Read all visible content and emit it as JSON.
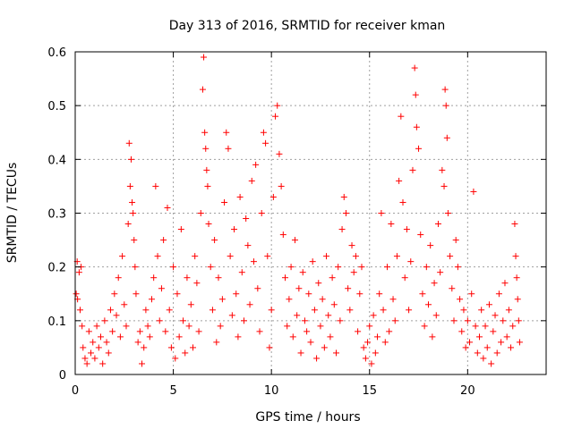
{
  "chart_data": {
    "type": "scatter",
    "title": "Day 313 of 2016, SRMTID for receiver kman",
    "xlabel": "GPS time / hours",
    "ylabel": "SRMTID / TECUs",
    "xlim": [
      0,
      24
    ],
    "ylim": [
      0,
      0.6
    ],
    "x_ticks": [
      0,
      5,
      10,
      15,
      20
    ],
    "y_ticks": [
      0,
      0.1,
      0.2,
      0.3,
      0.4,
      0.5,
      0.6
    ],
    "x_tick_labels": [
      "0",
      "5",
      "10",
      "15",
      "20"
    ],
    "y_tick_labels": [
      "0",
      "0.1",
      "0.2",
      "0.3",
      "0.4",
      "0.5",
      "0.6"
    ],
    "grid": true,
    "marker": "+",
    "color": "#ff0000",
    "series": [
      {
        "name": "SRMTID",
        "points": [
          [
            0.05,
            0.15
          ],
          [
            0.1,
            0.21
          ],
          [
            0.12,
            0.14
          ],
          [
            0.2,
            0.19
          ],
          [
            0.25,
            0.12
          ],
          [
            0.3,
            0.2
          ],
          [
            0.35,
            0.09
          ],
          [
            0.4,
            0.05
          ],
          [
            0.5,
            0.03
          ],
          [
            0.6,
            0.02
          ],
          [
            0.7,
            0.08
          ],
          [
            0.8,
            0.04
          ],
          [
            0.9,
            0.06
          ],
          [
            1.0,
            0.03
          ],
          [
            1.1,
            0.09
          ],
          [
            1.2,
            0.05
          ],
          [
            1.3,
            0.07
          ],
          [
            1.4,
            0.02
          ],
          [
            1.5,
            0.1
          ],
          [
            1.6,
            0.06
          ],
          [
            1.7,
            0.04
          ],
          [
            1.8,
            0.12
          ],
          [
            1.9,
            0.08
          ],
          [
            2.0,
            0.15
          ],
          [
            2.1,
            0.11
          ],
          [
            2.2,
            0.18
          ],
          [
            2.3,
            0.07
          ],
          [
            2.4,
            0.22
          ],
          [
            2.5,
            0.13
          ],
          [
            2.6,
            0.09
          ],
          [
            2.7,
            0.28
          ],
          [
            2.75,
            0.43
          ],
          [
            2.8,
            0.35
          ],
          [
            2.85,
            0.4
          ],
          [
            2.9,
            0.32
          ],
          [
            2.95,
            0.3
          ],
          [
            3.0,
            0.25
          ],
          [
            3.05,
            0.2
          ],
          [
            3.1,
            0.15
          ],
          [
            3.2,
            0.06
          ],
          [
            3.3,
            0.08
          ],
          [
            3.4,
            0.02
          ],
          [
            3.5,
            0.05
          ],
          [
            3.6,
            0.12
          ],
          [
            3.7,
            0.09
          ],
          [
            3.8,
            0.07
          ],
          [
            3.9,
            0.14
          ],
          [
            4.0,
            0.18
          ],
          [
            4.1,
            0.35
          ],
          [
            4.2,
            0.22
          ],
          [
            4.3,
            0.1
          ],
          [
            4.4,
            0.16
          ],
          [
            4.5,
            0.25
          ],
          [
            4.6,
            0.08
          ],
          [
            4.7,
            0.31
          ],
          [
            4.8,
            0.12
          ],
          [
            4.9,
            0.05
          ],
          [
            5.0,
            0.2
          ],
          [
            5.1,
            0.03
          ],
          [
            5.2,
            0.15
          ],
          [
            5.3,
            0.07
          ],
          [
            5.4,
            0.27
          ],
          [
            5.5,
            0.1
          ],
          [
            5.6,
            0.04
          ],
          [
            5.7,
            0.18
          ],
          [
            5.8,
            0.09
          ],
          [
            5.9,
            0.13
          ],
          [
            6.0,
            0.05
          ],
          [
            6.1,
            0.22
          ],
          [
            6.2,
            0.17
          ],
          [
            6.3,
            0.08
          ],
          [
            6.4,
            0.3
          ],
          [
            6.5,
            0.53
          ],
          [
            6.55,
            0.59
          ],
          [
            6.6,
            0.45
          ],
          [
            6.65,
            0.42
          ],
          [
            6.7,
            0.38
          ],
          [
            6.75,
            0.35
          ],
          [
            6.8,
            0.28
          ],
          [
            6.9,
            0.2
          ],
          [
            7.0,
            0.12
          ],
          [
            7.1,
            0.25
          ],
          [
            7.2,
            0.06
          ],
          [
            7.3,
            0.18
          ],
          [
            7.4,
            0.09
          ],
          [
            7.5,
            0.14
          ],
          [
            7.6,
            0.32
          ],
          [
            7.7,
            0.45
          ],
          [
            7.8,
            0.42
          ],
          [
            7.9,
            0.22
          ],
          [
            8.0,
            0.11
          ],
          [
            8.1,
            0.27
          ],
          [
            8.2,
            0.15
          ],
          [
            8.3,
            0.07
          ],
          [
            8.4,
            0.33
          ],
          [
            8.5,
            0.19
          ],
          [
            8.6,
            0.1
          ],
          [
            8.7,
            0.29
          ],
          [
            8.8,
            0.24
          ],
          [
            8.9,
            0.13
          ],
          [
            9.0,
            0.36
          ],
          [
            9.1,
            0.21
          ],
          [
            9.2,
            0.39
          ],
          [
            9.3,
            0.16
          ],
          [
            9.4,
            0.08
          ],
          [
            9.5,
            0.3
          ],
          [
            9.6,
            0.45
          ],
          [
            9.7,
            0.43
          ],
          [
            9.8,
            0.22
          ],
          [
            9.9,
            0.05
          ],
          [
            10.0,
            0.12
          ],
          [
            10.1,
            0.33
          ],
          [
            10.2,
            0.48
          ],
          [
            10.3,
            0.5
          ],
          [
            10.4,
            0.41
          ],
          [
            10.5,
            0.35
          ],
          [
            10.6,
            0.26
          ],
          [
            10.7,
            0.18
          ],
          [
            10.8,
            0.09
          ],
          [
            10.9,
            0.14
          ],
          [
            11.0,
            0.2
          ],
          [
            11.1,
            0.07
          ],
          [
            11.2,
            0.25
          ],
          [
            11.3,
            0.11
          ],
          [
            11.4,
            0.16
          ],
          [
            11.5,
            0.04
          ],
          [
            11.6,
            0.19
          ],
          [
            11.7,
            0.1
          ],
          [
            11.8,
            0.08
          ],
          [
            11.9,
            0.15
          ],
          [
            12.0,
            0.06
          ],
          [
            12.1,
            0.21
          ],
          [
            12.2,
            0.12
          ],
          [
            12.3,
            0.03
          ],
          [
            12.4,
            0.17
          ],
          [
            12.5,
            0.09
          ],
          [
            12.6,
            0.14
          ],
          [
            12.7,
            0.05
          ],
          [
            12.8,
            0.22
          ],
          [
            12.9,
            0.11
          ],
          [
            13.0,
            0.07
          ],
          [
            13.1,
            0.18
          ],
          [
            13.2,
            0.13
          ],
          [
            13.3,
            0.04
          ],
          [
            13.4,
            0.2
          ],
          [
            13.5,
            0.1
          ],
          [
            13.6,
            0.27
          ],
          [
            13.7,
            0.33
          ],
          [
            13.8,
            0.3
          ],
          [
            13.9,
            0.16
          ],
          [
            14.0,
            0.12
          ],
          [
            14.1,
            0.24
          ],
          [
            14.2,
            0.19
          ],
          [
            14.3,
            0.22
          ],
          [
            14.4,
            0.08
          ],
          [
            14.5,
            0.15
          ],
          [
            14.6,
            0.2
          ],
          [
            14.7,
            0.05
          ],
          [
            14.8,
            0.03
          ],
          [
            14.9,
            0.06
          ],
          [
            15.0,
            0.09
          ],
          [
            15.1,
            0.02
          ],
          [
            15.2,
            0.11
          ],
          [
            15.3,
            0.04
          ],
          [
            15.4,
            0.07
          ],
          [
            15.5,
            0.15
          ],
          [
            15.6,
            0.3
          ],
          [
            15.7,
            0.12
          ],
          [
            15.8,
            0.06
          ],
          [
            15.9,
            0.2
          ],
          [
            16.0,
            0.08
          ],
          [
            16.1,
            0.28
          ],
          [
            16.2,
            0.14
          ],
          [
            16.3,
            0.1
          ],
          [
            16.4,
            0.22
          ],
          [
            16.5,
            0.36
          ],
          [
            16.6,
            0.48
          ],
          [
            16.7,
            0.32
          ],
          [
            16.8,
            0.18
          ],
          [
            16.9,
            0.27
          ],
          [
            17.0,
            0.12
          ],
          [
            17.1,
            0.21
          ],
          [
            17.2,
            0.38
          ],
          [
            17.3,
            0.57
          ],
          [
            17.35,
            0.52
          ],
          [
            17.4,
            0.46
          ],
          [
            17.5,
            0.42
          ],
          [
            17.6,
            0.26
          ],
          [
            17.7,
            0.15
          ],
          [
            17.8,
            0.09
          ],
          [
            17.9,
            0.2
          ],
          [
            18.0,
            0.13
          ],
          [
            18.1,
            0.24
          ],
          [
            18.2,
            0.07
          ],
          [
            18.3,
            0.17
          ],
          [
            18.4,
            0.11
          ],
          [
            18.5,
            0.28
          ],
          [
            18.6,
            0.19
          ],
          [
            18.7,
            0.38
          ],
          [
            18.8,
            0.35
          ],
          [
            18.85,
            0.53
          ],
          [
            18.9,
            0.5
          ],
          [
            18.95,
            0.44
          ],
          [
            19.0,
            0.3
          ],
          [
            19.1,
            0.22
          ],
          [
            19.2,
            0.16
          ],
          [
            19.3,
            0.1
          ],
          [
            19.4,
            0.25
          ],
          [
            19.5,
            0.2
          ],
          [
            19.6,
            0.14
          ],
          [
            19.7,
            0.08
          ],
          [
            19.8,
            0.12
          ],
          [
            19.9,
            0.05
          ],
          [
            20.0,
            0.1
          ],
          [
            20.1,
            0.06
          ],
          [
            20.2,
            0.15
          ],
          [
            20.3,
            0.34
          ],
          [
            20.4,
            0.09
          ],
          [
            20.5,
            0.04
          ],
          [
            20.6,
            0.07
          ],
          [
            20.7,
            0.12
          ],
          [
            20.8,
            0.03
          ],
          [
            20.9,
            0.09
          ],
          [
            21.0,
            0.05
          ],
          [
            21.1,
            0.13
          ],
          [
            21.2,
            0.02
          ],
          [
            21.3,
            0.08
          ],
          [
            21.4,
            0.11
          ],
          [
            21.5,
            0.04
          ],
          [
            21.6,
            0.15
          ],
          [
            21.7,
            0.06
          ],
          [
            21.8,
            0.1
          ],
          [
            21.9,
            0.17
          ],
          [
            22.0,
            0.07
          ],
          [
            22.1,
            0.12
          ],
          [
            22.2,
            0.05
          ],
          [
            22.3,
            0.09
          ],
          [
            22.4,
            0.28
          ],
          [
            22.45,
            0.22
          ],
          [
            22.5,
            0.18
          ],
          [
            22.55,
            0.14
          ],
          [
            22.6,
            0.1
          ],
          [
            22.65,
            0.06
          ]
        ]
      }
    ]
  }
}
